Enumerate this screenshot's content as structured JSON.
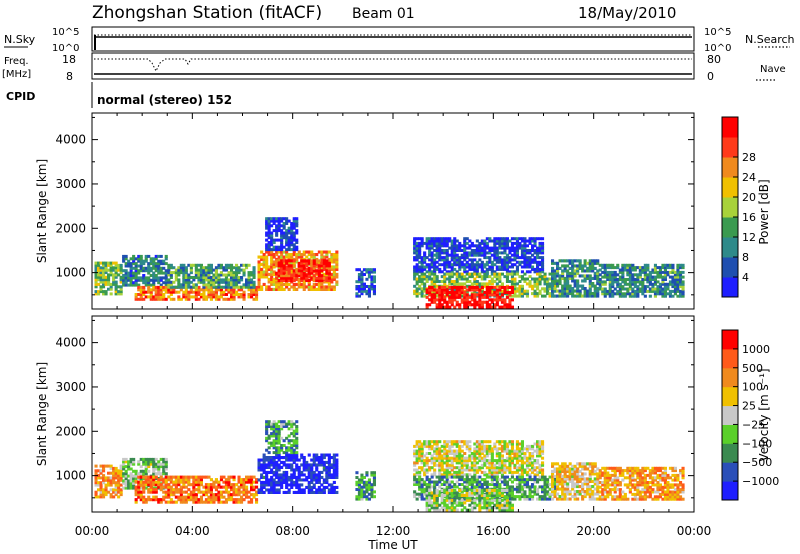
{
  "header": {
    "station": "Zhongshan Station (fitACF)",
    "beam": "Beam 01",
    "date": "18/May/2010"
  },
  "strips": {
    "nsky_label": "N.Sky",
    "nsearch_label": "N.Search",
    "log_top": "10^5",
    "log_bottom": "10^0",
    "freq_label": "Freq.",
    "freq_unit": "[MHz]",
    "freq_top": "18",
    "freq_bottom": "8",
    "nave_label": "Nave",
    "nave_top": "80",
    "nave_bottom": "0",
    "cpid_label": "CPID",
    "cpid_text": "normal (stereo) 152"
  },
  "chart_data": [
    {
      "type": "heatmap",
      "quantity": "power",
      "ylabel": "Slant Range [km]",
      "ylim": [
        180,
        4600
      ],
      "yticks": [
        1000,
        2000,
        3000,
        4000
      ],
      "xlim": [
        0,
        24
      ],
      "colorbar": {
        "label": "Power [dB]",
        "ticks": [
          "4",
          "8",
          "12",
          "16",
          "20",
          "24",
          "28"
        ],
        "bands": [
          "#1f1fff",
          "#1f4fb0",
          "#2e8a8a",
          "#3a9a50",
          "#a8d23a",
          "#f0c000",
          "#f08a1e",
          "#ff3a1a",
          "#ff0000"
        ]
      },
      "echo_regions": [
        {
          "t": [
            0.1,
            1.2
          ],
          "r": [
            500,
            1250
          ],
          "level": 0.45
        },
        {
          "t": [
            1.2,
            3.0
          ],
          "r": [
            700,
            1400
          ],
          "level": 0.25
        },
        {
          "t": [
            1.7,
            6.6
          ],
          "r": [
            380,
            700
          ],
          "level": 0.75
        },
        {
          "t": [
            3.0,
            6.5
          ],
          "r": [
            650,
            1200
          ],
          "level": 0.35
        },
        {
          "t": [
            6.6,
            9.8
          ],
          "r": [
            600,
            1500
          ],
          "level": 0.7
        },
        {
          "t": [
            7.3,
            9.5
          ],
          "r": [
            800,
            1300
          ],
          "level": 0.9
        },
        {
          "t": [
            6.9,
            8.2
          ],
          "r": [
            1500,
            2250
          ],
          "level": 0.1
        },
        {
          "t": [
            10.5,
            11.3
          ],
          "r": [
            450,
            1100
          ],
          "level": 0.15
        },
        {
          "t": [
            12.8,
            18.0
          ],
          "r": [
            1000,
            1800
          ],
          "level": 0.1
        },
        {
          "t": [
            12.8,
            18.5
          ],
          "r": [
            450,
            1000
          ],
          "level": 0.45
        },
        {
          "t": [
            13.3,
            16.8
          ],
          "r": [
            200,
            700
          ],
          "level": 0.95
        },
        {
          "t": [
            18.3,
            20.2
          ],
          "r": [
            450,
            1300
          ],
          "level": 0.3
        },
        {
          "t": [
            20.2,
            23.6
          ],
          "r": [
            450,
            1200
          ],
          "level": 0.3
        }
      ]
    },
    {
      "type": "heatmap",
      "quantity": "velocity",
      "ylabel": "Slant Range [km]",
      "ylim": [
        180,
        4600
      ],
      "yticks": [
        1000,
        2000,
        3000,
        4000
      ],
      "xlim": [
        0,
        24
      ],
      "xlabel": "Time UT",
      "xticks": [
        "00:00",
        "04:00",
        "08:00",
        "12:00",
        "16:00",
        "20:00",
        "00:00"
      ],
      "colorbar": {
        "label": "Velocity [m s⁻¹]",
        "ticks": [
          "1000",
          "500",
          "100",
          "25",
          "−25",
          "−100",
          "−500",
          "−1000"
        ],
        "bands": [
          "#1f1fff",
          "#2a4fb8",
          "#3a8a50",
          "#5ad02a",
          "#c8c8c8",
          "#f0c000",
          "#f08a1e",
          "#ff5a1a",
          "#ff0000"
        ]
      },
      "echo_regions": [
        {
          "t": [
            0.1,
            1.2
          ],
          "r": [
            500,
            1250
          ],
          "level": 0.7
        },
        {
          "t": [
            1.2,
            3.0
          ],
          "r": [
            700,
            1400
          ],
          "level": 0.4
        },
        {
          "t": [
            1.7,
            6.6
          ],
          "r": [
            380,
            1000
          ],
          "level": 0.78
        },
        {
          "t": [
            6.6,
            9.8
          ],
          "r": [
            600,
            1500
          ],
          "level": 0.05
        },
        {
          "t": [
            6.9,
            8.2
          ],
          "r": [
            1500,
            2250
          ],
          "level": 0.3
        },
        {
          "t": [
            10.5,
            11.3
          ],
          "r": [
            450,
            1100
          ],
          "level": 0.3
        },
        {
          "t": [
            12.8,
            18.0
          ],
          "r": [
            1000,
            1800
          ],
          "level": 0.52
        },
        {
          "t": [
            12.8,
            18.5
          ],
          "r": [
            450,
            1000
          ],
          "level": 0.3
        },
        {
          "t": [
            13.3,
            16.8
          ],
          "r": [
            200,
            700
          ],
          "level": 0.45
        },
        {
          "t": [
            18.3,
            20.2
          ],
          "r": [
            450,
            1300
          ],
          "level": 0.6
        },
        {
          "t": [
            20.2,
            23.6
          ],
          "r": [
            450,
            1200
          ],
          "level": 0.7
        }
      ]
    }
  ]
}
